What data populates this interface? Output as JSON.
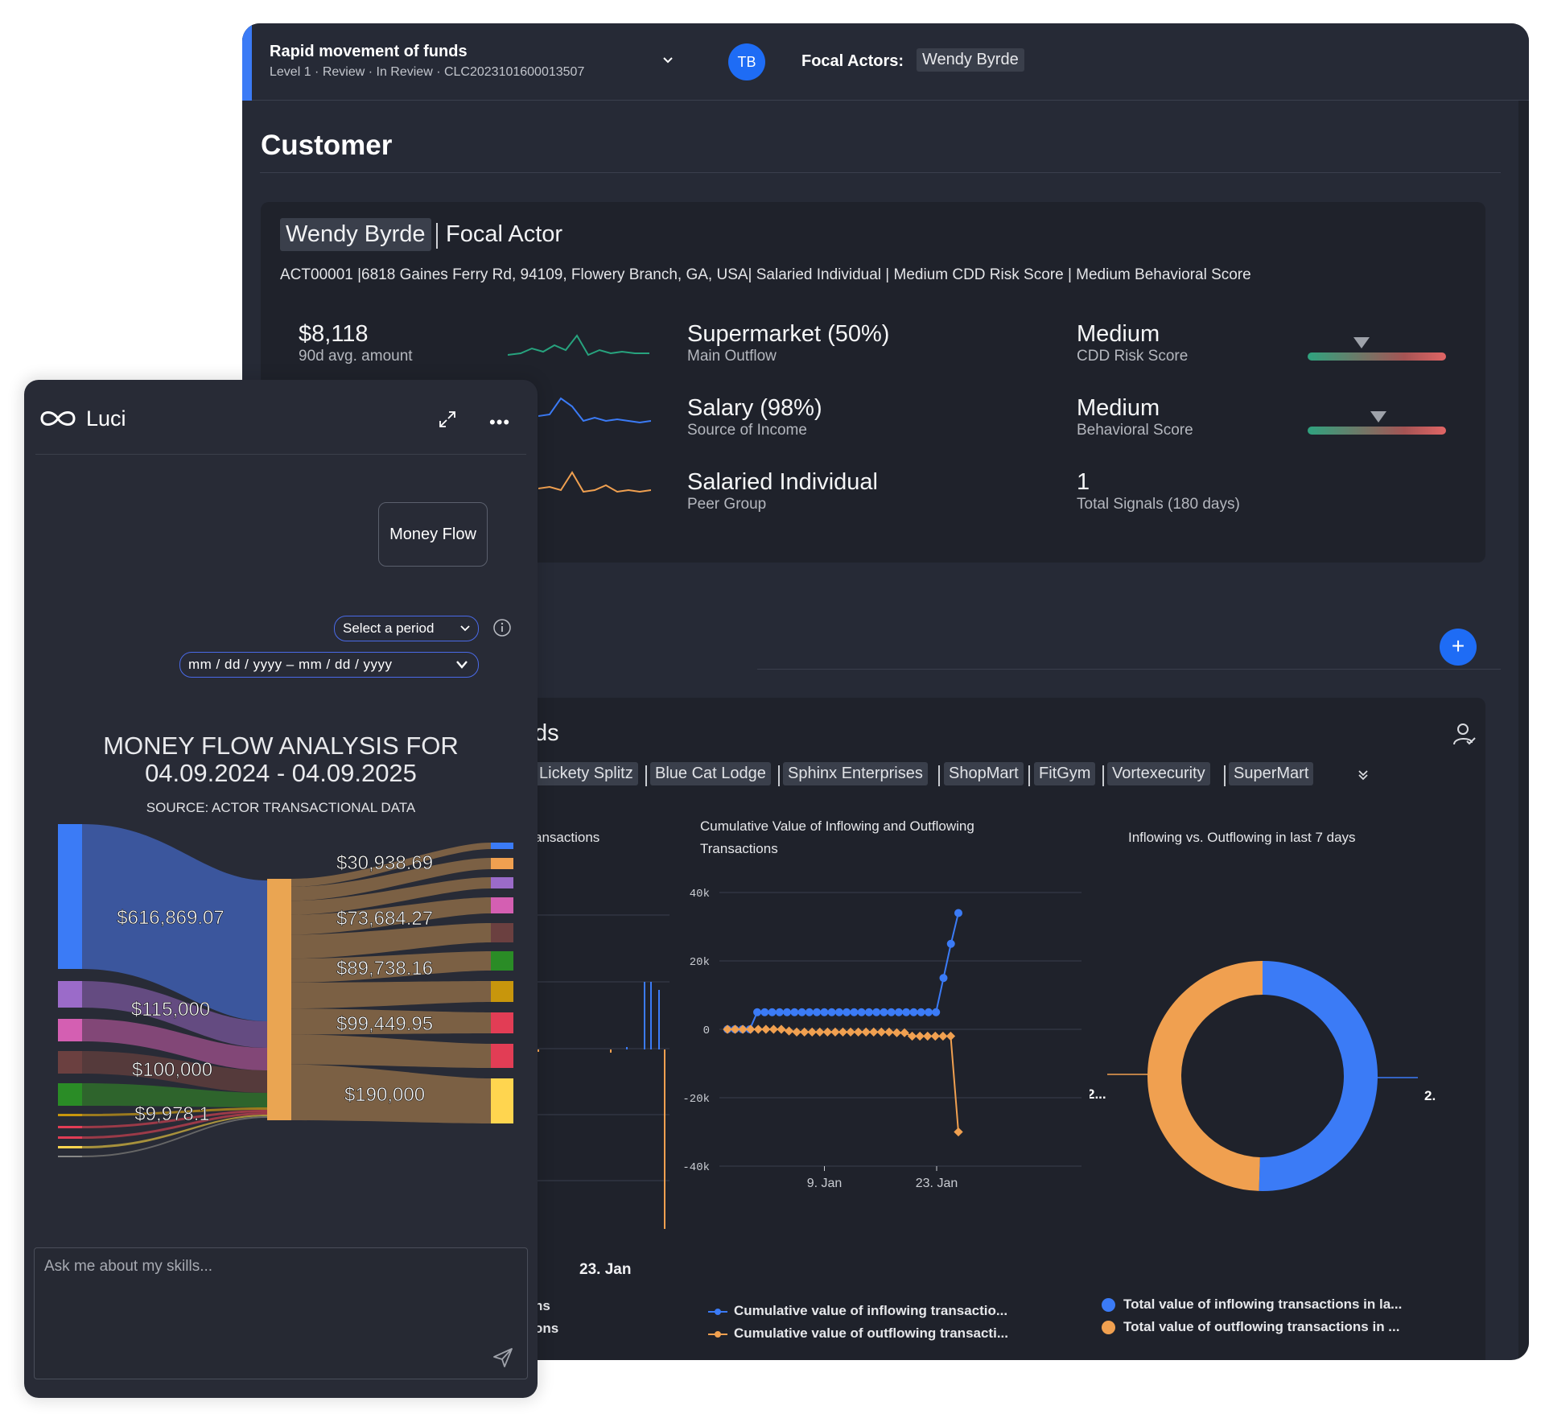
{
  "topbar": {
    "case_title": "Rapid movement of funds",
    "case_subtitle": "Level 1 · Review · In Review · CLC2023101600013507",
    "avatar_initials": "TB",
    "focal_actors_label": "Focal Actors:",
    "focal_actor": "Wendy Byrde"
  },
  "section": {
    "title": "Customer"
  },
  "customer": {
    "name": "Wendy Byrde",
    "role": "Focal Actor",
    "meta": "ACT00001 |6818 Gaines Ferry Rd, 94109, Flowery Branch, GA, USA| Salaried Individual | Medium CDD Risk Score | Medium Behavioral Score",
    "stats": [
      {
        "value": "$8,118",
        "label": "90d avg. amount"
      },
      {
        "value": "Supermarket (50%)",
        "label": "Main Outflow"
      },
      {
        "value": "Medium",
        "label": "CDD Risk Score",
        "gauge_level": 0.4
      },
      {
        "value": "Salary (98%)",
        "label": "Source of Income"
      },
      {
        "value": "Medium",
        "label": "Behavioral Score",
        "gauge_level": 0.52
      },
      {
        "value": "Salaried Individual",
        "label": "Peer Group"
      },
      {
        "value": "1",
        "label": "Total Signals (180 days)"
      }
    ],
    "sparkline_colors": [
      "#27a37e",
      "#3b7bf6",
      "#f0a050"
    ]
  },
  "funds": {
    "title_fragment": "ds",
    "chips": [
      "Lickety Splitz",
      "Blue Cat Lodge",
      "Sphinx Enterprises",
      "ShopMart",
      "FitGym",
      "Vortexecurity",
      "SuperMart"
    ],
    "left_chart_title_fragment": "ansactions",
    "left_chart_x_label": "23. Jan",
    "left_legend_fragments": [
      "ns",
      "ons"
    ],
    "cumulative_title": "Cumulative Value of Inflowing and Outflowing Transactions",
    "donut_title": "Inflowing vs. Outflowing in last 7 days",
    "colors": {
      "inflow": "#3b7bf6",
      "outflow": "#f0a050"
    }
  },
  "chart_data": [
    {
      "type": "line",
      "title": "Cumulative Value of Inflowing and Outflowing Transactions",
      "yticks": [
        "40k",
        "20k",
        "0",
        "-20k",
        "-40k"
      ],
      "ylim": [
        -40000,
        40000
      ],
      "xticks": [
        "9. Jan",
        "23. Jan"
      ],
      "series": [
        {
          "name": "Cumulative value of inflowing transactio...",
          "color": "#3b7bf6",
          "values": [
            0,
            0,
            0,
            0,
            5000,
            5000,
            5000,
            5000,
            5000,
            5000,
            5000,
            5000,
            5000,
            5000,
            5000,
            5000,
            5000,
            5000,
            5000,
            5000,
            5000,
            5000,
            5000,
            5000,
            5000,
            5000,
            5000,
            5000,
            5000,
            15000,
            25000,
            34000
          ]
        },
        {
          "name": "Cumulative value of outflowing transacti...",
          "color": "#f0a050",
          "values": [
            0,
            0,
            0,
            0,
            0,
            0,
            0,
            0,
            -500,
            -800,
            -800,
            -800,
            -800,
            -800,
            -800,
            -800,
            -800,
            -800,
            -800,
            -800,
            -800,
            -800,
            -1000,
            -1000,
            -2000,
            -2000,
            -2000,
            -2000,
            -2000,
            -2000,
            -30000
          ]
        }
      ]
    },
    {
      "type": "pie",
      "title": "Inflowing vs. Outflowing in last 7 days",
      "labels": [
        "Total value of inflowing transactions in la...",
        "Total value of outflowing transactions in ..."
      ],
      "values": [
        50.5,
        49.5
      ],
      "colors": [
        "#3b7bf6",
        "#f0a050"
      ],
      "data_labels": [
        "2.",
        "2..."
      ]
    },
    {
      "type": "bar",
      "title": "MONEY FLOW ANALYSIS FOR 04.09.2024 - 04.09.2025",
      "subtitle": "SOURCE: ACTOR TRANSACTIONAL DATA",
      "sources": [
        {
          "label": "$616,869.07",
          "color": "#3b7bf6"
        },
        {
          "label": "$115,000",
          "color": "#9b6bc9"
        },
        {
          "label": "$100,000",
          "color": "#d45fb2"
        },
        {
          "label": "$9,978.1",
          "color": "#6b4040"
        }
      ],
      "targets": [
        {
          "label": "$30,938.69"
        },
        {
          "label": "$73,684.27"
        },
        {
          "label": "$89,738.16"
        },
        {
          "label": "$99,449.95"
        },
        {
          "label": "$190,000"
        }
      ]
    }
  ],
  "luci": {
    "name": "Luci",
    "chip": "Money Flow",
    "period_placeholder": "Select a period",
    "date_placeholder": "mm / dd / yyyy  –  mm / dd / yyyy",
    "title_line1": "MONEY FLOW ANALYSIS FOR",
    "title_line2": "04.09.2024 - 04.09.2025",
    "source": "SOURCE: ACTOR TRANSACTIONAL DATA",
    "ask_placeholder": "Ask me about my skills..."
  }
}
